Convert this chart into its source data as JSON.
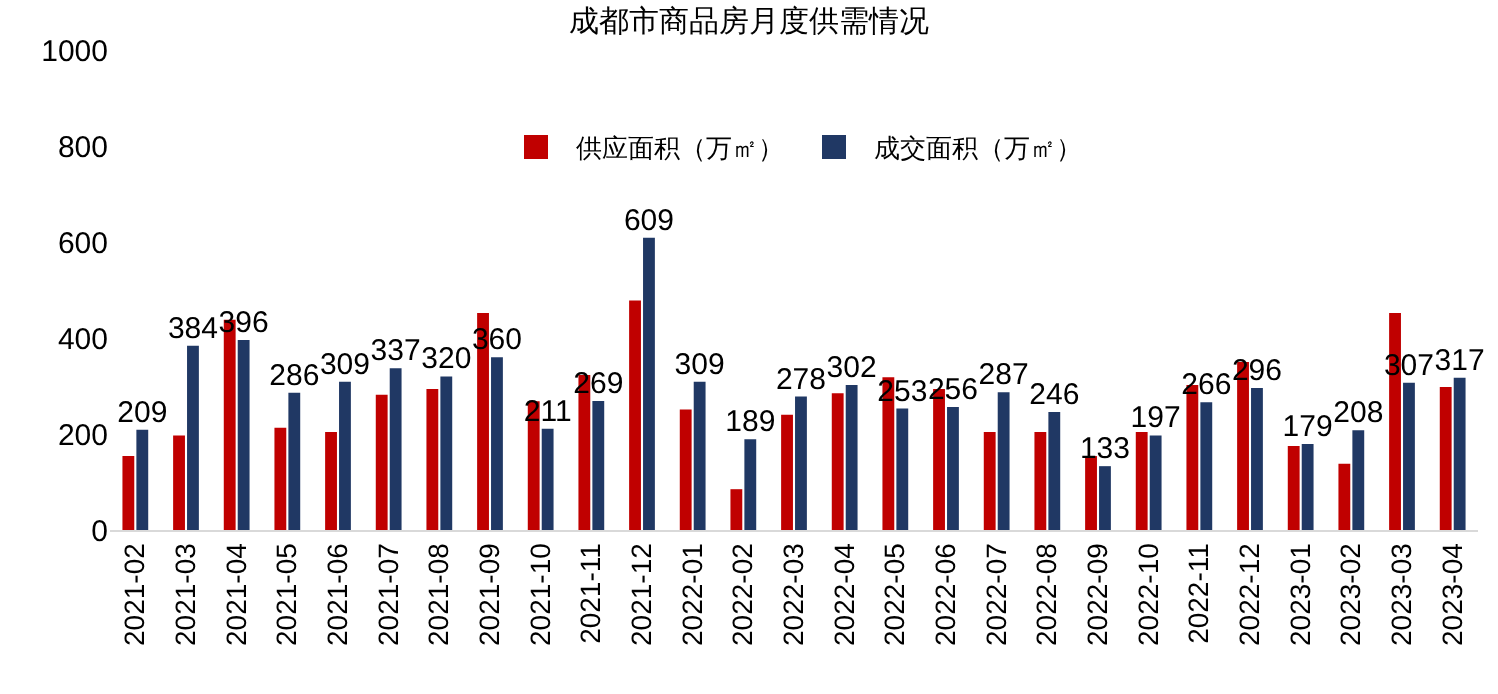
{
  "chart_data": {
    "type": "bar",
    "title": "成都市商品房月度供需情况",
    "categories": [
      "2021-02",
      "2021-03",
      "2021-04",
      "2021-05",
      "2021-06",
      "2021-07",
      "2021-08",
      "2021-09",
      "2021-10",
      "2021-11",
      "2021-12",
      "2022-01",
      "2022-02",
      "2022-03",
      "2022-04",
      "2022-05",
      "2022-06",
      "2022-07",
      "2022-08",
      "2022-09",
      "2022-10",
      "2022-11",
      "2022-12",
      "2023-01",
      "2023-02",
      "2023-03",
      "2023-04"
    ],
    "series": [
      {
        "name": "供应面积（万㎡）",
        "color": "#c00000",
        "values": [
          154,
          197,
          438,
          213,
          204,
          282,
          294,
          452,
          268,
          323,
          478,
          251,
          85,
          240,
          285,
          318,
          294,
          204,
          204,
          154,
          204,
          302,
          350,
          175,
          138,
          452,
          298
        ]
      },
      {
        "name": "成交面积（万㎡）",
        "color": "#203864",
        "values": [
          209,
          384,
          396,
          286,
          309,
          337,
          320,
          360,
          211,
          269,
          609,
          309,
          189,
          278,
          302,
          253,
          256,
          287,
          246,
          133,
          197,
          266,
          296,
          179,
          208,
          307,
          317
        ],
        "value_labels": [
          "209",
          "384",
          "396",
          "286",
          "309",
          "337",
          "320",
          "360",
          "211",
          "269",
          "609",
          "309",
          "189",
          "278",
          "302",
          "253",
          "256",
          "287",
          "246",
          "133",
          "197",
          "266",
          "296",
          "179",
          "208",
          "307",
          "317"
        ]
      }
    ],
    "ylim": [
      0,
      1000
    ],
    "yticks": [
      0,
      200,
      400,
      600,
      800,
      1000
    ],
    "grid": false,
    "legend": "top"
  }
}
